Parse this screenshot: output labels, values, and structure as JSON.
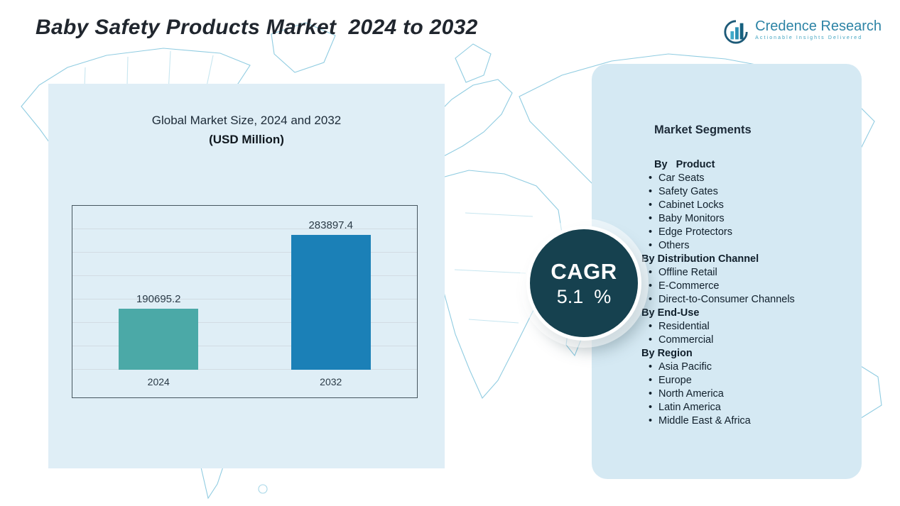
{
  "title": "Baby Safety Products Market  2024 to 2032",
  "logo": {
    "name": "Credence Research",
    "tagline": "Actionable Insights Delivered"
  },
  "chart_data": {
    "type": "bar",
    "title": "Global Market Size, 2024 and 2032",
    "subtitle": "(USD Million)",
    "categories": [
      "2024",
      "2032"
    ],
    "values": [
      190695.2,
      283897.4
    ],
    "value_labels": [
      "190695.2",
      "283897.4"
    ],
    "bar_colors": [
      "#4BA9A7",
      "#1B80B7"
    ],
    "ylim": [
      113000,
      284000
    ],
    "grid": true,
    "legend": false
  },
  "cagr": {
    "label": "CAGR",
    "value": "5.1  %"
  },
  "segments": {
    "heading": "Market Segments",
    "bullet_icon": "•",
    "groups": [
      {
        "label": "By   Product",
        "items": [
          "Car Seats",
          "Safety Gates",
          "Cabinet Locks",
          "Baby Monitors",
          "Edge Protectors",
          "Others"
        ]
      },
      {
        "label": "By Distribution Channel",
        "items": [
          "Offline Retail",
          "E-Commerce",
          "Direct-to-Consumer Channels"
        ]
      },
      {
        "label": "By End-Use",
        "items": [
          "Residential",
          "Commercial"
        ]
      },
      {
        "label": "By Region",
        "items": [
          "Asia Pacific",
          "Europe",
          "North America",
          "Latin America",
          "Middle East & Africa"
        ]
      }
    ]
  },
  "colors": {
    "bar_2024": "#4BA9A7",
    "bar_2032": "#1B80B7",
    "cagr_circle": "#16414F",
    "panel_left": "#DFEEF6",
    "panel_right": "#D5E9F3",
    "map_line": "#7CC3DC"
  }
}
